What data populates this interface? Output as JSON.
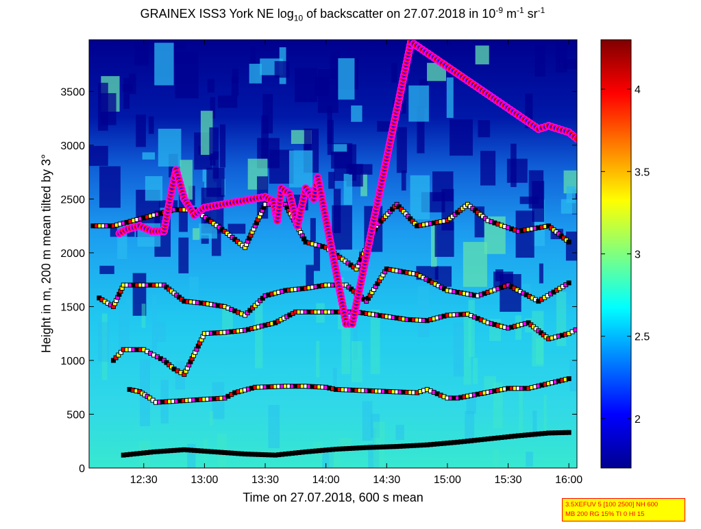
{
  "title": {
    "prefix": "GRAINEX ISS3 York NE log",
    "sub": "10",
    "middle": " of backscatter on 27.07.2018 in 10",
    "exp1": "-9",
    "unit1": " m",
    "exp2": "-1",
    "unit2": " sr",
    "exp3": "-1"
  },
  "settings": {
    "line1": "3.5XEFUV 5 [100 2500] NH 600",
    "line2": "MB 200 RG 15% TI 0 HI 15"
  },
  "colors": {
    "background_low": "#00008f",
    "boundary_marker_fill": "#ff0000",
    "cloud_marker_fill": "#0000ff",
    "cloud_marker_edge": "#ff00ff"
  },
  "chart_data": {
    "type": "heatmap",
    "xlabel": "Time on 27.07.2018, 600 s mean",
    "ylabel": "Height in m, 200 m mean tilted by 3°",
    "x_unit": "time of day",
    "xlim": [
      "12:03",
      "16:04"
    ],
    "ylim": [
      0,
      3980
    ],
    "x_ticks": [
      "12:30",
      "13:00",
      "13:30",
      "14:00",
      "14:30",
      "15:00",
      "15:30",
      "16:00"
    ],
    "y_ticks": [
      0,
      500,
      1000,
      1500,
      2000,
      2500,
      3000,
      3500
    ],
    "colorbar": {
      "range": [
        1.7,
        4.3
      ],
      "ticks": [
        2,
        2.5,
        3,
        3.5,
        4
      ],
      "colormap": "jet"
    },
    "series": [
      {
        "name": "",
        "marker": "square",
        "points": [
          [
            "12:20",
            120
          ],
          [
            "12:35",
            150
          ],
          [
            "12:50",
            170
          ],
          [
            "13:05",
            150
          ],
          [
            "13:20",
            130
          ],
          [
            "13:35",
            120
          ],
          [
            "13:50",
            150
          ],
          [
            "14:05",
            175
          ],
          [
            "14:20",
            190
          ],
          [
            "14:35",
            200
          ],
          [
            "14:50",
            215
          ],
          [
            "15:05",
            240
          ],
          [
            "15:20",
            270
          ],
          [
            "15:35",
            300
          ],
          [
            "15:50",
            325
          ],
          [
            "16:00",
            330
          ]
        ]
      },
      {
        "name": "",
        "marker": "square",
        "points": [
          [
            "12:23",
            730
          ],
          [
            "12:28",
            710
          ],
          [
            "12:33",
            650
          ],
          [
            "12:36",
            610
          ],
          [
            "13:10",
            650
          ],
          [
            "13:15",
            700
          ],
          [
            "13:25",
            750
          ],
          [
            "13:40",
            760
          ],
          [
            "13:50",
            760
          ],
          [
            "14:00",
            750
          ],
          [
            "14:05",
            730
          ],
          [
            "14:45",
            700
          ],
          [
            "14:50",
            730
          ],
          [
            "15:00",
            650
          ],
          [
            "15:05",
            650
          ],
          [
            "15:30",
            740
          ],
          [
            "15:40",
            740
          ],
          [
            "16:00",
            830
          ]
        ]
      },
      {
        "name": "",
        "marker": "square",
        "points": [
          [
            "12:15",
            1000
          ],
          [
            "12:20",
            1100
          ],
          [
            "12:30",
            1100
          ],
          [
            "12:35",
            1050
          ],
          [
            "12:40",
            1000
          ],
          [
            "12:45",
            920
          ],
          [
            "12:50",
            870
          ],
          [
            "13:00",
            1250
          ],
          [
            "13:10",
            1260
          ],
          [
            "13:20",
            1280
          ],
          [
            "13:35",
            1350
          ],
          [
            "13:45",
            1450
          ],
          [
            "14:00",
            1450
          ],
          [
            "14:15",
            1450
          ],
          [
            "14:40",
            1380
          ],
          [
            "14:50",
            1370
          ],
          [
            "15:00",
            1420
          ],
          [
            "15:10",
            1430
          ],
          [
            "15:20",
            1350
          ],
          [
            "15:30",
            1300
          ],
          [
            "15:40",
            1350
          ],
          [
            "15:50",
            1200
          ],
          [
            "16:00",
            1250
          ],
          [
            "16:05",
            1300
          ]
        ]
      },
      {
        "name": "",
        "marker": "square",
        "points": [
          [
            "12:08",
            1580
          ],
          [
            "12:15",
            1500
          ],
          [
            "12:20",
            1700
          ],
          [
            "12:30",
            1700
          ],
          [
            "12:40",
            1700
          ],
          [
            "12:50",
            1550
          ],
          [
            "13:00",
            1530
          ],
          [
            "13:10",
            1500
          ],
          [
            "13:20",
            1420
          ],
          [
            "13:30",
            1600
          ],
          [
            "13:40",
            1650
          ],
          [
            "13:50",
            1670
          ],
          [
            "14:00",
            1700
          ],
          [
            "14:10",
            1700
          ],
          [
            "14:20",
            1550
          ],
          [
            "14:30",
            1850
          ],
          [
            "14:45",
            1800
          ],
          [
            "15:00",
            1650
          ],
          [
            "15:15",
            1600
          ],
          [
            "15:30",
            1700
          ],
          [
            "15:45",
            1550
          ],
          [
            "16:00",
            1720
          ]
        ]
      },
      {
        "name": "",
        "marker": "square",
        "points": [
          [
            "12:05",
            2250
          ],
          [
            "12:15",
            2250
          ],
          [
            "12:25",
            2300
          ],
          [
            "12:35",
            2350
          ],
          [
            "12:45",
            2400
          ],
          [
            "12:55",
            2400
          ],
          [
            "13:10",
            2200
          ],
          [
            "13:20",
            2050
          ],
          [
            "13:30",
            2450
          ],
          [
            "13:40",
            2450
          ],
          [
            "13:50",
            2100
          ],
          [
            "14:00",
            2050
          ],
          [
            "14:15",
            1850
          ],
          [
            "14:25",
            2250
          ],
          [
            "14:35",
            2450
          ],
          [
            "14:45",
            2250
          ],
          [
            "15:00",
            2300
          ],
          [
            "15:10",
            2450
          ],
          [
            "15:20",
            2300
          ],
          [
            "15:35",
            2200
          ],
          [
            "15:50",
            2250
          ],
          [
            "16:00",
            2100
          ]
        ]
      },
      {
        "name": "",
        "marker": "circle",
        "points": [
          [
            "12:18",
            2180
          ],
          [
            "12:22",
            2220
          ],
          [
            "12:28",
            2250
          ],
          [
            "12:34",
            2200
          ],
          [
            "12:40",
            2200
          ],
          [
            "12:44",
            2600
          ],
          [
            "12:46",
            2770
          ],
          [
            "12:50",
            2500
          ],
          [
            "12:55",
            2350
          ],
          [
            "13:00",
            2420
          ],
          [
            "13:30",
            2520
          ],
          [
            "13:34",
            2480
          ],
          [
            "13:36",
            2300
          ],
          [
            "13:38",
            2600
          ],
          [
            "13:42",
            2550
          ],
          [
            "13:46",
            2250
          ],
          [
            "13:50",
            2600
          ],
          [
            "13:54",
            2500
          ],
          [
            "13:56",
            2700
          ],
          [
            "14:10",
            1340
          ],
          [
            "14:13",
            1340
          ],
          [
            "14:42",
            3960
          ],
          [
            "15:45",
            3150
          ],
          [
            "15:50",
            3180
          ],
          [
            "15:55",
            3150
          ],
          [
            "16:00",
            3120
          ],
          [
            "16:04",
            3060
          ]
        ]
      }
    ]
  }
}
